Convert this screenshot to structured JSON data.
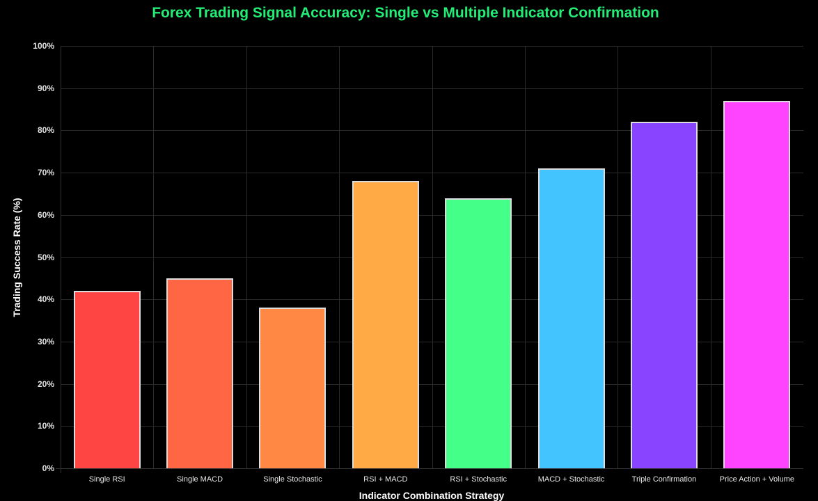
{
  "chart_data": {
    "type": "bar",
    "title": "Forex Trading Signal Accuracy: Single vs Multiple Indicator Confirmation",
    "xlabel": "Indicator Combination Strategy",
    "ylabel": "Trading Success Rate (%)",
    "ylim": [
      0,
      100
    ],
    "yticks": [
      "0%",
      "10%",
      "20%",
      "30%",
      "40%",
      "50%",
      "60%",
      "70%",
      "80%",
      "90%",
      "100%"
    ],
    "grid": true,
    "legend": "none",
    "categories": [
      "Single RSI",
      "Single MACD",
      "Single Stochastic",
      "RSI + MACD",
      "RSI + Stochastic",
      "MACD + Stochastic",
      "Triple Confirmation",
      "Price Action + Volume"
    ],
    "values": [
      42,
      45,
      38,
      68,
      64,
      71,
      82,
      87
    ],
    "colors": [
      "#ff4444",
      "#ff6644",
      "#ff8844",
      "#ffaa44",
      "#44ff88",
      "#44c4ff",
      "#8844ff",
      "#ff44ff"
    ]
  },
  "colors": {
    "background": "#000000",
    "title": "#22ee77",
    "grid": "#2a2a2a",
    "bar_border": "#dddddd"
  }
}
